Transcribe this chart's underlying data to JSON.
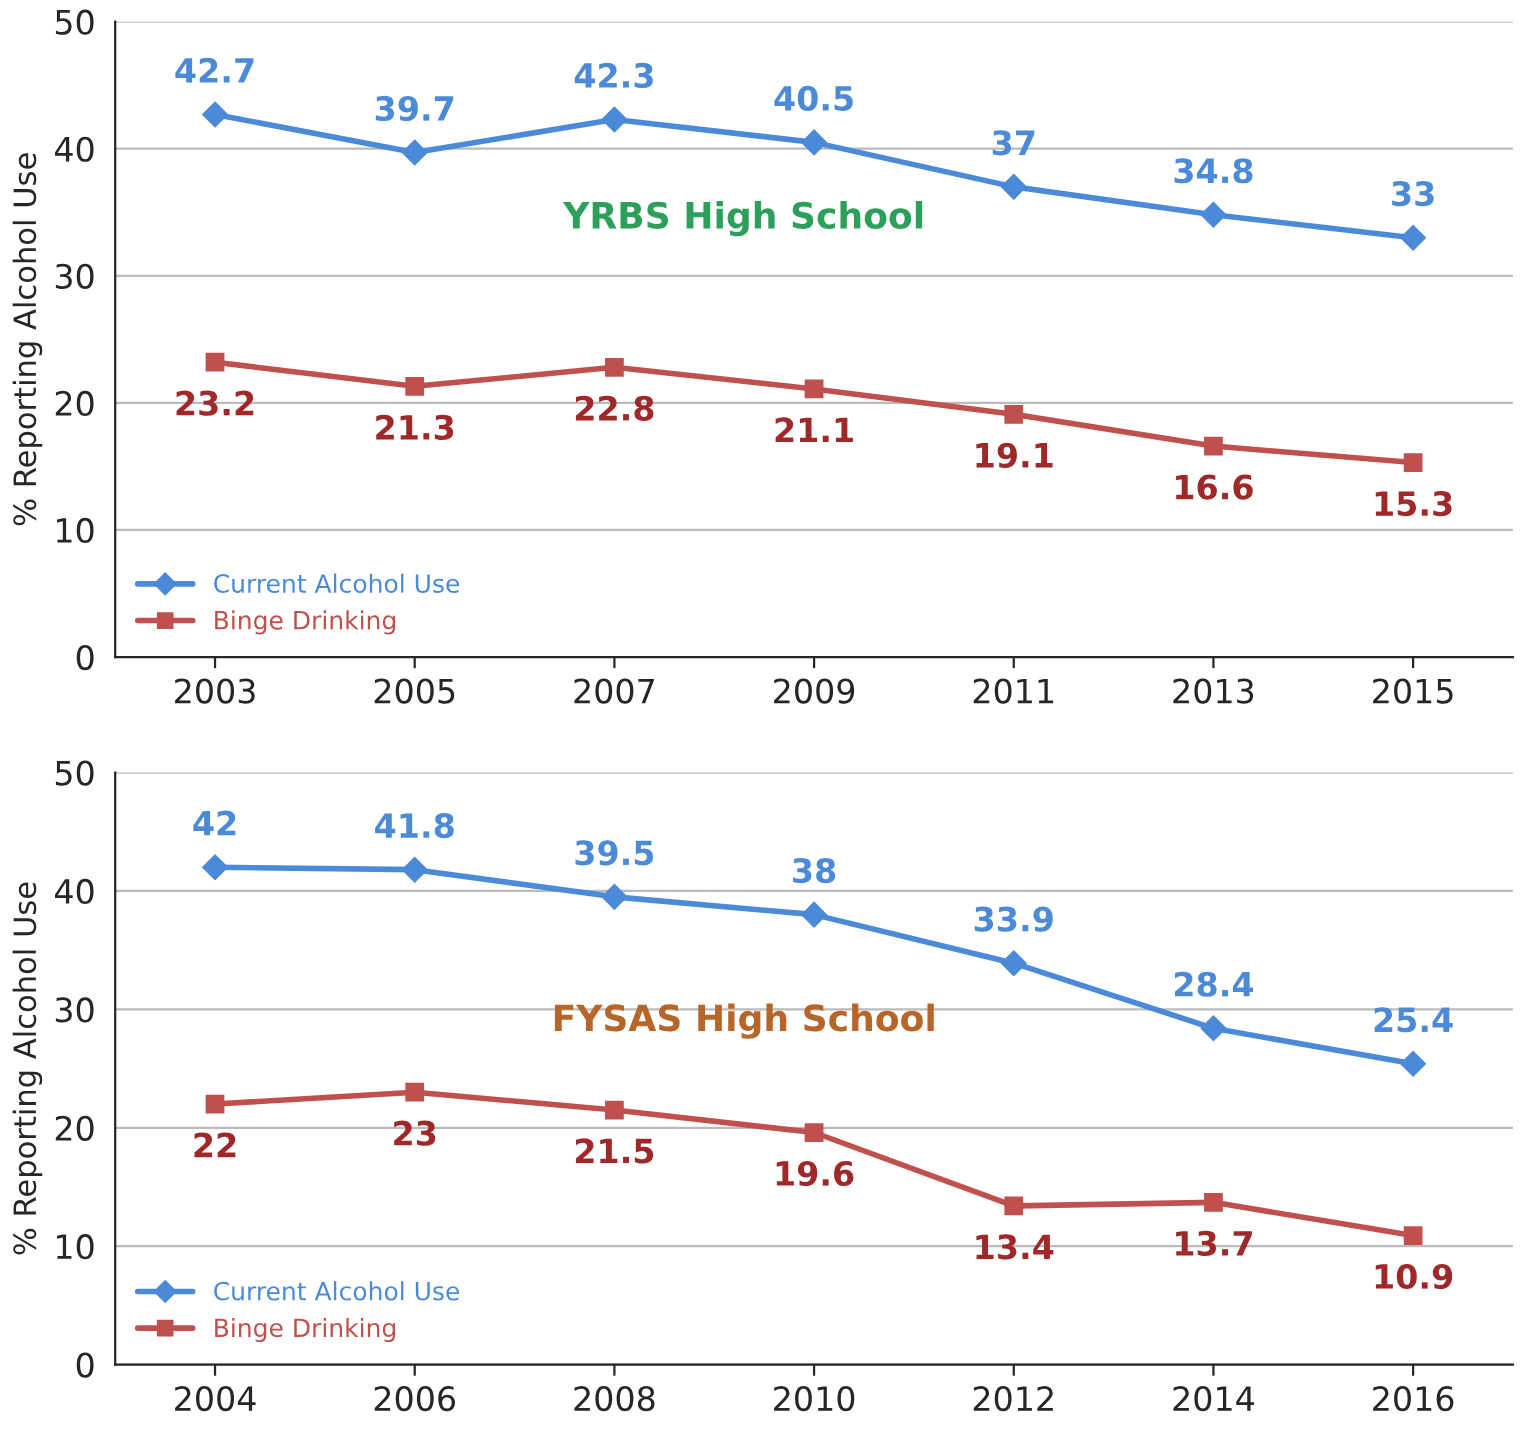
{
  "chart_data": [
    {
      "type": "line",
      "categories": [
        "2003",
        "2005",
        "2007",
        "2009",
        "2011",
        "2013",
        "2015"
      ],
      "ylabel": "% Reporting Alcohol Use",
      "ylim": [
        0,
        50
      ],
      "yticks": [
        0,
        10,
        20,
        30,
        40,
        50
      ],
      "grid": "y",
      "legend": "bottom left",
      "data_labels": true,
      "annotations": [
        "YRBS High School"
      ],
      "series": [
        {
          "name": "Current Alcohol Use",
          "color": "#4a8ad8",
          "marker": "diamond",
          "values": [
            42.7,
            39.7,
            42.3,
            40.5,
            37,
            34.8,
            33
          ]
        },
        {
          "name": "Binge Drinking",
          "color": "#c0504d",
          "marker": "square",
          "values": [
            23.2,
            21.3,
            22.8,
            21.1,
            19.1,
            16.6,
            15.3
          ]
        }
      ]
    },
    {
      "type": "line",
      "categories": [
        "2004",
        "2006",
        "2008",
        "2010",
        "2012",
        "2014",
        "2016"
      ],
      "ylabel": "% Reporting Alcohol Use",
      "ylim": [
        0,
        50
      ],
      "yticks": [
        0,
        10,
        20,
        30,
        40,
        50
      ],
      "grid": "y",
      "legend": "bottom left",
      "data_labels": true,
      "annotations": [
        "FYSAS High School"
      ],
      "series": [
        {
          "name": "Current Alcohol Use",
          "color": "#4a8ad8",
          "marker": "diamond",
          "values": [
            42,
            41.8,
            39.5,
            38,
            33.9,
            28.4,
            25.4
          ]
        },
        {
          "name": "Binge Drinking",
          "color": "#c0504d",
          "marker": "square",
          "values": [
            22,
            23,
            21.5,
            19.6,
            13.4,
            13.7,
            10.9
          ]
        }
      ]
    }
  ]
}
